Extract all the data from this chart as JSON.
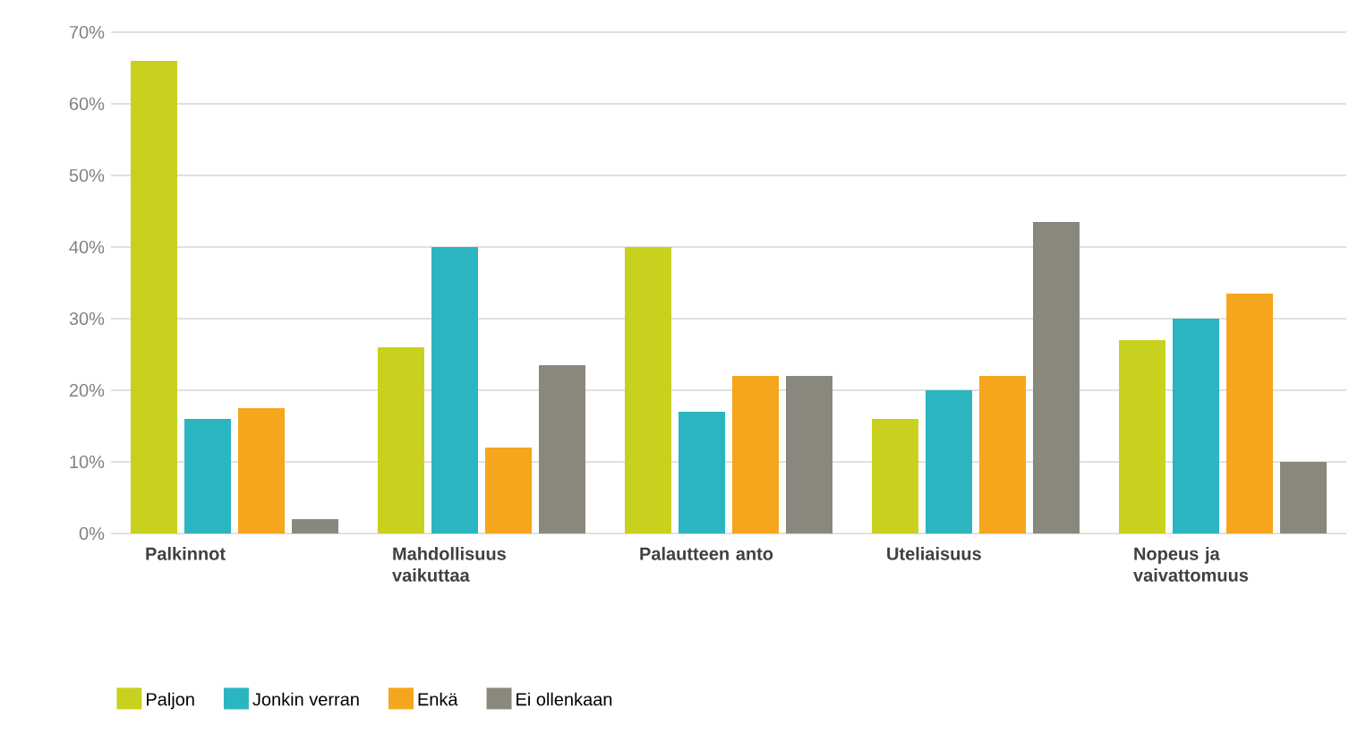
{
  "chart_data": {
    "type": "bar",
    "categories": [
      "Palkinnot",
      "Mahdollisuus vaikuttaa",
      "Palautteen anto",
      "Uteliaisuus",
      "Nopeus ja vaivattomuus"
    ],
    "series": [
      {
        "name": "Paljon",
        "color": "#c8d11e",
        "values": [
          66,
          26,
          40,
          16,
          27
        ]
      },
      {
        "name": "Jonkin verran",
        "color": "#2bb5c0",
        "values": [
          16,
          40,
          17,
          20,
          30
        ]
      },
      {
        "name": "Enkä",
        "color": "#f5a61c",
        "values": [
          17.5,
          12,
          22,
          22,
          33.5
        ]
      },
      {
        "name": "Ei ollenkaan",
        "color": "#8a887c",
        "values": [
          2,
          23.5,
          22,
          43.5,
          10
        ]
      }
    ],
    "ylim": [
      0,
      70
    ],
    "yticks": [
      {
        "value": 0,
        "label": "0%"
      },
      {
        "value": 10,
        "label": "10%"
      },
      {
        "value": 20,
        "label": "20%"
      },
      {
        "value": 30,
        "label": "30%"
      },
      {
        "value": 40,
        "label": "40%"
      },
      {
        "value": 50,
        "label": "50%"
      },
      {
        "value": 60,
        "label": "60%"
      },
      {
        "value": 70,
        "label": "70%"
      }
    ],
    "grid": "y",
    "legend": "bottom left"
  }
}
